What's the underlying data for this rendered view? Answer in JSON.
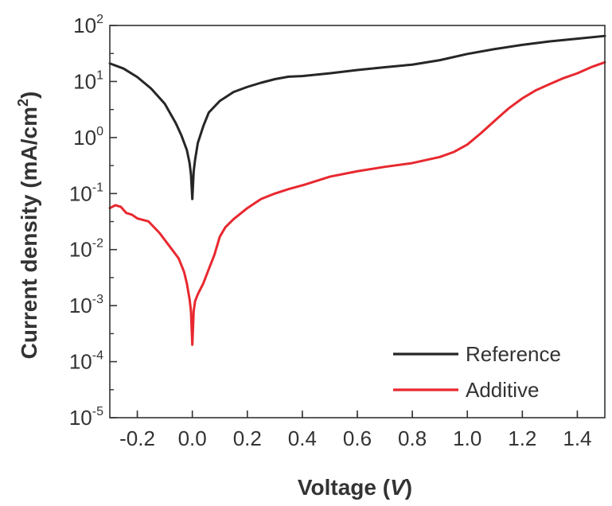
{
  "chart_data": {
    "type": "line",
    "title": "",
    "xlabel": {
      "prefix": "Voltage (",
      "var": "V",
      "suffix": ")"
    },
    "ylabel": {
      "main": "Current density (mA/cm",
      "sup": "2",
      "end": ")"
    },
    "yscale": "log",
    "xlim": [
      -0.3,
      1.5
    ],
    "ylim": [
      1e-05,
      100
    ],
    "x_ticks": [
      -0.2,
      0.0,
      0.2,
      0.4,
      0.6,
      0.8,
      1.0,
      1.2,
      1.4
    ],
    "x_tick_labels": [
      "-0.2",
      "0.0",
      "0.2",
      "0.4",
      "0.6",
      "0.8",
      "1.0",
      "1.2",
      "1.4"
    ],
    "y_ticks": [
      {
        "value": 100,
        "base": "10",
        "exp": "2"
      },
      {
        "value": 10,
        "base": "10",
        "exp": "1"
      },
      {
        "value": 1,
        "base": "10",
        "exp": "0"
      },
      {
        "value": 0.1,
        "base": "10",
        "exp": "-1"
      },
      {
        "value": 0.01,
        "base": "10",
        "exp": "-2"
      },
      {
        "value": 0.001,
        "base": "10",
        "exp": "-3"
      },
      {
        "value": 0.0001,
        "base": "10",
        "exp": "-4"
      },
      {
        "value": 1e-05,
        "base": "10",
        "exp": "-5"
      }
    ],
    "legend_position": "bottom-right",
    "series": [
      {
        "name": "Reference",
        "color": "#262626",
        "x": [
          -0.3,
          -0.25,
          -0.2,
          -0.15,
          -0.1,
          -0.06,
          -0.04,
          -0.02,
          -0.01,
          -0.005,
          0.0,
          0.005,
          0.01,
          0.02,
          0.04,
          0.06,
          0.1,
          0.15,
          0.2,
          0.25,
          0.3,
          0.35,
          0.4,
          0.5,
          0.6,
          0.7,
          0.8,
          0.9,
          1.0,
          1.1,
          1.2,
          1.3,
          1.4,
          1.5
        ],
        "y": [
          21,
          17,
          12,
          7.5,
          4,
          1.8,
          1.1,
          0.6,
          0.35,
          0.22,
          0.08,
          0.25,
          0.4,
          0.8,
          1.6,
          2.8,
          4.5,
          6.5,
          8,
          9.5,
          11,
          12.2,
          12.5,
          14,
          16,
          18,
          20,
          24,
          31,
          38,
          45,
          52,
          58,
          65
        ]
      },
      {
        "name": "Additive",
        "color": "#e8282f",
        "x": [
          -0.3,
          -0.28,
          -0.26,
          -0.24,
          -0.22,
          -0.2,
          -0.16,
          -0.12,
          -0.08,
          -0.05,
          -0.03,
          -0.02,
          -0.01,
          -0.005,
          0.0,
          0.005,
          0.01,
          0.02,
          0.04,
          0.06,
          0.08,
          0.1,
          0.12,
          0.15,
          0.2,
          0.25,
          0.3,
          0.35,
          0.4,
          0.5,
          0.6,
          0.7,
          0.8,
          0.9,
          0.95,
          1.0,
          1.05,
          1.1,
          1.15,
          1.2,
          1.25,
          1.3,
          1.35,
          1.4,
          1.45,
          1.5
        ],
        "y": [
          0.055,
          0.062,
          0.058,
          0.045,
          0.042,
          0.036,
          0.032,
          0.02,
          0.011,
          0.007,
          0.004,
          0.0025,
          0.0013,
          0.0008,
          0.0002,
          0.0008,
          0.0012,
          0.0016,
          0.0025,
          0.0045,
          0.008,
          0.017,
          0.025,
          0.035,
          0.055,
          0.08,
          0.1,
          0.12,
          0.14,
          0.2,
          0.25,
          0.3,
          0.35,
          0.45,
          0.55,
          0.75,
          1.2,
          2,
          3.3,
          5,
          7,
          9,
          11.5,
          14,
          18,
          22
        ]
      }
    ]
  }
}
